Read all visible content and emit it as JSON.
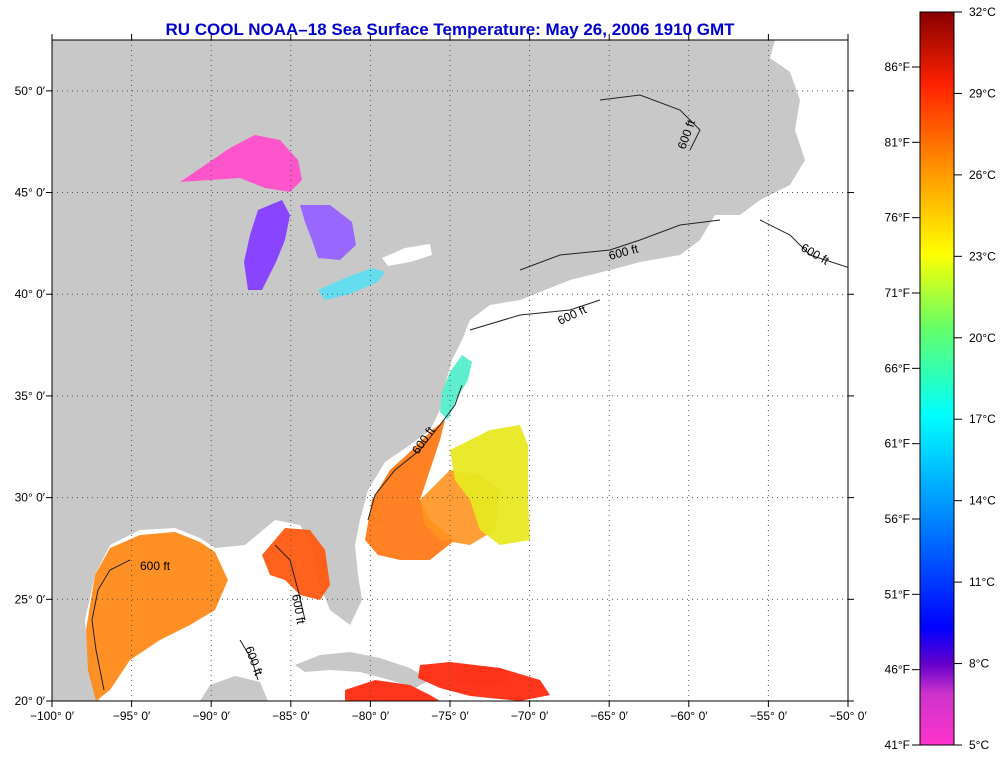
{
  "title": "RU COOL  NOAA–18  Sea Surface Temperature:  May 26, 2006 1910 GMT",
  "map": {
    "lon_range": [
      -100,
      -50
    ],
    "lat_range": [
      20,
      52.5
    ],
    "lon_ticks": [
      "−100° 0′",
      "−95° 0′",
      "−90° 0′",
      "−85° 0′",
      "−80° 0′",
      "−75° 0′",
      "−70° 0′",
      "−65° 0′",
      "−60° 0′",
      "−55° 0′",
      "−50° 0′"
    ],
    "lat_ticks": [
      "20° 0′",
      "25° 0′",
      "30° 0′",
      "35° 0′",
      "40° 0′",
      "45° 0′",
      "50° 0′"
    ],
    "contour_label": "600 ft",
    "land_color": "#c8c8c8",
    "water_color": "#ffffff",
    "grid": true
  },
  "colorbar": {
    "celsius_labels": [
      "32°C",
      "29°C",
      "26°C",
      "23°C",
      "20°C",
      "17°C",
      "14°C",
      "11°C",
      "8°C",
      "5°C"
    ],
    "fahrenheit_labels": [
      "86°F",
      "81°F",
      "76°F",
      "71°F",
      "66°F",
      "61°F",
      "56°F",
      "51°F",
      "46°F",
      "41°F"
    ],
    "range_c": [
      5,
      32
    ],
    "colors": [
      "#ff33cc",
      "#9900cc",
      "#0000ff",
      "#0099ff",
      "#00ffff",
      "#66ff66",
      "#ffff00",
      "#ff9900",
      "#ff3300",
      "#880000"
    ]
  }
}
